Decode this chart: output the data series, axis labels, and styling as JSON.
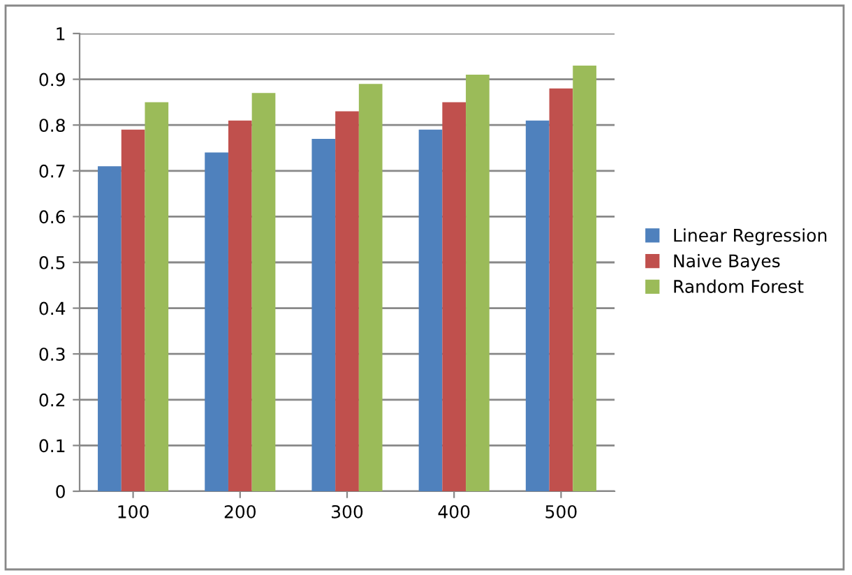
{
  "chart_data": {
    "type": "bar",
    "categories": [
      "100",
      "200",
      "300",
      "400",
      "500"
    ],
    "series": [
      {
        "name": "Linear Regression",
        "color": "#4f81bd",
        "values": [
          0.71,
          0.74,
          0.77,
          0.79,
          0.81
        ]
      },
      {
        "name": "Naive Bayes",
        "color": "#c0504d",
        "values": [
          0.79,
          0.81,
          0.83,
          0.85,
          0.88
        ]
      },
      {
        "name": "Random Forest",
        "color": "#9bbb59",
        "values": [
          0.85,
          0.87,
          0.89,
          0.91,
          0.93
        ]
      }
    ],
    "ylim": [
      0,
      1
    ],
    "yticks": [
      0,
      0.1,
      0.2,
      0.3,
      0.4,
      0.5,
      0.6,
      0.7,
      0.8,
      0.9,
      1
    ],
    "grid": "y",
    "legend": "right"
  }
}
